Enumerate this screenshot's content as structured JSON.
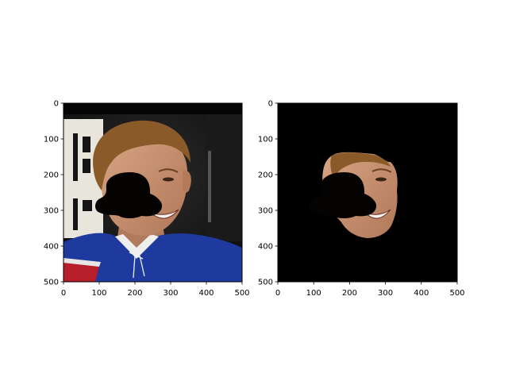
{
  "figure": {
    "background": "#ffffff"
  },
  "chart_data": [
    {
      "type": "image",
      "panel": "left",
      "description_of_content": "photo",
      "xlim": [
        0,
        500
      ],
      "ylim": [
        500,
        0
      ],
      "xticks": [
        0,
        100,
        200,
        300,
        400,
        500
      ],
      "yticks": [
        0,
        100,
        200,
        300,
        400,
        500
      ],
      "xtick_labels": [
        "0",
        "100",
        "200",
        "300",
        "400",
        "500"
      ],
      "ytick_labels": [
        "0",
        "100",
        "200",
        "300",
        "400",
        "500"
      ],
      "colors": {
        "jersey": "#1e3a9e",
        "skin": "#c89070",
        "hair": "#8a5a28",
        "background": "#151515",
        "occlusion": "#050202"
      }
    },
    {
      "type": "image",
      "panel": "right",
      "description_of_content": "masked photo",
      "xlim": [
        0,
        500
      ],
      "ylim": [
        500,
        0
      ],
      "xticks": [
        0,
        100,
        200,
        300,
        400,
        500
      ],
      "yticks": [
        0,
        100,
        200,
        300,
        400,
        500
      ],
      "xtick_labels": [
        "0",
        "100",
        "200",
        "300",
        "400",
        "500"
      ],
      "ytick_labels": [
        "0",
        "100",
        "200",
        "300",
        "400",
        "500"
      ],
      "colors": {
        "background": "#000000",
        "skin": "#c89070"
      }
    }
  ]
}
